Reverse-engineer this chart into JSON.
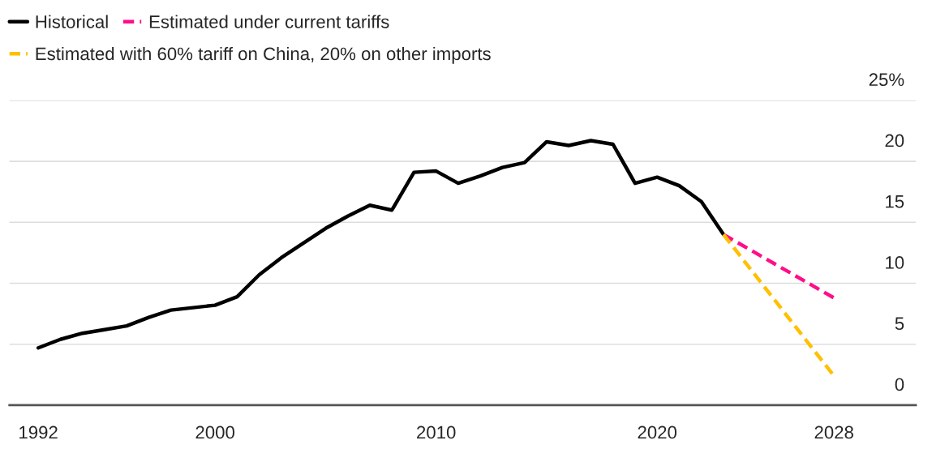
{
  "chart_data": {
    "type": "line",
    "series": [
      {
        "name": "Historical",
        "color": "#000000",
        "line_style": "solid",
        "x": [
          1992,
          1993,
          1994,
          1995,
          1996,
          1997,
          1998,
          1999,
          2000,
          2001,
          2002,
          2003,
          2004,
          2005,
          2006,
          2007,
          2008,
          2009,
          2010,
          2011,
          2012,
          2013,
          2014,
          2015,
          2016,
          2017,
          2018,
          2019,
          2020,
          2021,
          2022,
          2023
        ],
        "values": [
          4.7,
          5.4,
          5.9,
          6.2,
          6.5,
          7.2,
          7.8,
          8.0,
          8.2,
          8.9,
          10.7,
          12.1,
          13.3,
          14.5,
          15.5,
          16.4,
          16.0,
          19.1,
          19.2,
          18.2,
          18.8,
          19.5,
          19.9,
          21.6,
          21.3,
          21.7,
          21.4,
          18.2,
          18.7,
          18.0,
          16.7,
          14.0
        ]
      },
      {
        "name": "Estimated under current tariffs",
        "color": "#ff0d8a",
        "line_style": "dashed",
        "x": [
          2023,
          2028
        ],
        "values": [
          14.0,
          8.8
        ]
      },
      {
        "name": "Estimated with 60% tariff on China, 20% on other imports",
        "color": "#ffc000",
        "line_style": "dashed",
        "x": [
          2023,
          2028
        ],
        "values": [
          14.0,
          2.4
        ]
      }
    ],
    "xlim": [
      1990.7,
      2031.7
    ],
    "xticks": [
      1992,
      2000,
      2010,
      2020,
      2028
    ],
    "ylim": [
      0,
      25
    ],
    "yticks": [
      0,
      5,
      10,
      15,
      20,
      {
        "value": 25,
        "label": "25%"
      }
    ],
    "grid": "y",
    "legend": "top left"
  }
}
